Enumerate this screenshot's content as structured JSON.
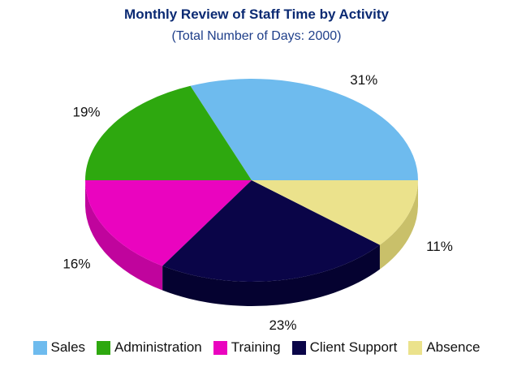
{
  "chart_data": {
    "type": "pie",
    "title": "Monthly Review of Staff Time by Activity",
    "subtitle": "(Total Number of Days: 2000)",
    "three_d": true,
    "legend_position": "bottom",
    "slices": [
      {
        "name": "Sales",
        "value": 31,
        "label": "31%",
        "color": "#6ebbee",
        "side_color": "#4f98c9"
      },
      {
        "name": "Administration",
        "value": 19,
        "label": "19%",
        "color": "#2ea80f",
        "side_color": "#1f8a08"
      },
      {
        "name": "Training",
        "value": 16,
        "label": "16%",
        "color": "#ea04bf",
        "side_color": "#c0049d"
      },
      {
        "name": "Client Support",
        "value": 23,
        "label": "23%",
        "color": "#0a0548",
        "side_color": "#050230"
      },
      {
        "name": "Absence",
        "value": 11,
        "label": "11%",
        "color": "#ebe28c",
        "side_color": "#c9c06a"
      }
    ]
  }
}
